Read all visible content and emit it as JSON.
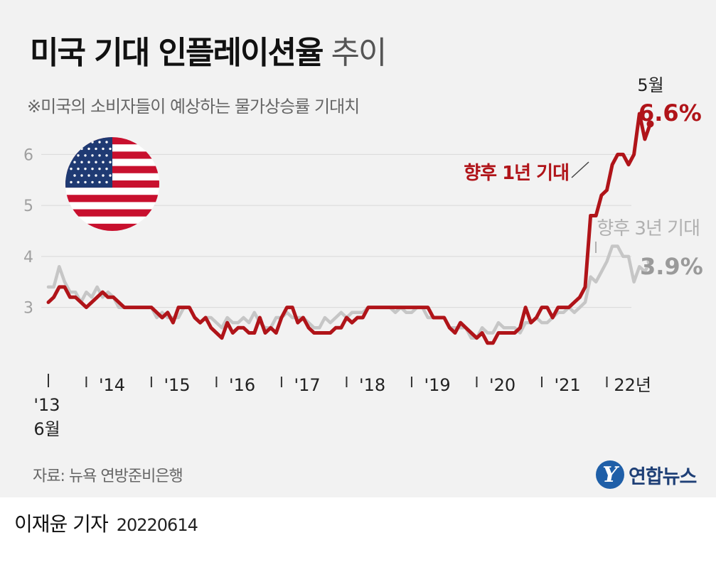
{
  "header": {
    "title_bold": "미국 기대 인플레이션율",
    "title_light": "추이",
    "subtitle": "※미국의 소비자들이 예상하는 물가상승률 기대치"
  },
  "footer": {
    "source": "자료: 뉴욕 연방준비은행",
    "logo_mark": "Y",
    "logo_text": "연합뉴스",
    "reporter": "이재윤 기자",
    "date": "20220614"
  },
  "chart_data": {
    "type": "line",
    "title": "미국 기대 인플레이션율 추이",
    "subtitle": "※미국의 소비자들이 예상하는 물가상승률 기대치",
    "ylim": [
      2.2,
      6.8
    ],
    "yticks": [
      3,
      4,
      5,
      6
    ],
    "ytick_labels": [
      "3",
      "4",
      "5",
      "6"
    ],
    "xrange": [
      "2013-06",
      "2022-05"
    ],
    "xticks": [
      {
        "at": "2013-06",
        "label": "'13"
      },
      {
        "at": "2014-06",
        "label": "'14"
      },
      {
        "at": "2015-06",
        "label": "'15"
      },
      {
        "at": "2016-06",
        "label": "'16"
      },
      {
        "at": "2017-06",
        "label": "'17"
      },
      {
        "at": "2018-06",
        "label": "'18"
      },
      {
        "at": "2019-06",
        "label": "'19"
      },
      {
        "at": "2020-06",
        "label": "'20"
      },
      {
        "at": "2021-06",
        "label": "'21"
      },
      {
        "at": "2022-06",
        "label": "22년"
      }
    ],
    "start_label": "6월",
    "grid": true,
    "series": [
      {
        "name": "향후 1년 기대",
        "color": "#b01419",
        "end_label": "6.6%",
        "end_label_prefix": "5월",
        "values": [
          3.1,
          3.2,
          3.4,
          3.4,
          3.2,
          3.2,
          3.1,
          3.0,
          3.1,
          3.2,
          3.3,
          3.2,
          3.2,
          3.1,
          3.0,
          3.0,
          3.0,
          3.0,
          3.0,
          3.0,
          2.9,
          2.8,
          2.9,
          2.7,
          3.0,
          3.0,
          3.0,
          2.8,
          2.7,
          2.8,
          2.6,
          2.5,
          2.4,
          2.7,
          2.5,
          2.6,
          2.6,
          2.5,
          2.5,
          2.8,
          2.5,
          2.6,
          2.5,
          2.8,
          3.0,
          3.0,
          2.7,
          2.8,
          2.6,
          2.5,
          2.5,
          2.5,
          2.5,
          2.6,
          2.6,
          2.8,
          2.7,
          2.8,
          2.8,
          3.0,
          3.0,
          3.0,
          3.0,
          3.0,
          3.0,
          3.0,
          3.0,
          3.0,
          3.0,
          3.0,
          3.0,
          2.8,
          2.8,
          2.8,
          2.6,
          2.5,
          2.7,
          2.6,
          2.5,
          2.4,
          2.5,
          2.3,
          2.3,
          2.5,
          2.5,
          2.5,
          2.5,
          2.6,
          3.0,
          2.7,
          2.8,
          3.0,
          3.0,
          2.8,
          3.0,
          3.0,
          3.0,
          3.1,
          3.2,
          3.4,
          4.8,
          4.8,
          5.2,
          5.3,
          5.8,
          6.0,
          6.0,
          5.8,
          6.0,
          6.8,
          6.3,
          6.6
        ]
      },
      {
        "name": "향후 3년 기대",
        "color": "#c6c6c6",
        "end_label": "3.9%",
        "values": [
          3.4,
          3.4,
          3.8,
          3.5,
          3.3,
          3.3,
          3.1,
          3.3,
          3.2,
          3.4,
          3.2,
          3.3,
          3.2,
          3.0,
          3.0,
          3.0,
          3.0,
          3.0,
          3.0,
          3.0,
          2.8,
          2.9,
          2.8,
          2.8,
          2.8,
          3.0,
          3.0,
          2.8,
          2.7,
          2.8,
          2.8,
          2.7,
          2.6,
          2.8,
          2.7,
          2.7,
          2.8,
          2.7,
          2.9,
          2.7,
          2.6,
          2.6,
          2.8,
          2.8,
          2.9,
          2.8,
          2.8,
          2.8,
          2.7,
          2.6,
          2.6,
          2.8,
          2.7,
          2.8,
          2.9,
          2.8,
          2.9,
          2.9,
          2.9,
          3.0,
          3.0,
          3.0,
          3.0,
          3.0,
          2.9,
          3.0,
          2.9,
          2.9,
          3.0,
          3.0,
          2.8,
          2.8,
          2.8,
          2.8,
          2.6,
          2.6,
          2.6,
          2.6,
          2.4,
          2.4,
          2.6,
          2.5,
          2.5,
          2.7,
          2.6,
          2.6,
          2.6,
          2.5,
          2.7,
          2.7,
          2.8,
          2.7,
          2.7,
          2.8,
          2.9,
          2.9,
          3.0,
          2.9,
          3.0,
          3.1,
          3.6,
          3.5,
          3.7,
          3.9,
          4.2,
          4.2,
          4.0,
          4.0,
          3.5,
          3.8,
          3.7,
          3.9
        ]
      }
    ]
  }
}
